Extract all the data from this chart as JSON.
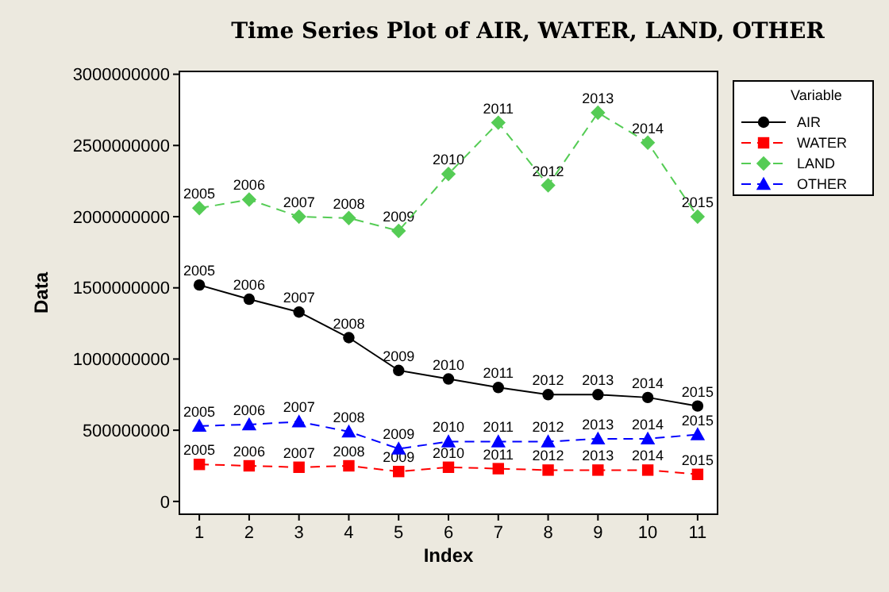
{
  "chart_data": {
    "type": "line",
    "title": "Time Series Plot of AIR, WATER, LAND, OTHER",
    "xlabel": "Index",
    "ylabel": "Data",
    "legend_title": "Variable",
    "legend": "right",
    "x": [
      1,
      2,
      3,
      4,
      5,
      6,
      7,
      8,
      9,
      10,
      11
    ],
    "xlim": [
      0.6,
      11.4
    ],
    "xticks": [
      1,
      2,
      3,
      4,
      5,
      6,
      7,
      8,
      9,
      10,
      11
    ],
    "ylim": [
      -90000000,
      3020000000
    ],
    "yticks": [
      0,
      500000000,
      1000000000,
      1500000000,
      2000000000,
      2500000000,
      3000000000
    ],
    "grid": false,
    "series": [
      {
        "name": "AIR",
        "color": "#000000",
        "marker": "circle",
        "line_style": "solid",
        "values": [
          1520000000,
          1420000000,
          1330000000,
          1150000000,
          920000000,
          860000000,
          800000000,
          750000000,
          750000000,
          730000000,
          670000000
        ]
      },
      {
        "name": "WATER",
        "color": "#ff0000",
        "marker": "square",
        "line_style": "dashed",
        "values": [
          260000000,
          250000000,
          240000000,
          250000000,
          210000000,
          240000000,
          230000000,
          220000000,
          220000000,
          220000000,
          190000000
        ]
      },
      {
        "name": "LAND",
        "color": "#55cc55",
        "marker": "diamond",
        "line_style": "dashed",
        "values": [
          2060000000,
          2120000000,
          2000000000,
          1990000000,
          1900000000,
          2300000000,
          2660000000,
          2220000000,
          2730000000,
          2520000000,
          2000000000
        ]
      },
      {
        "name": "OTHER",
        "color": "#0000ff",
        "marker": "triangle",
        "line_style": "dashed",
        "values": [
          530000000,
          540000000,
          560000000,
          490000000,
          370000000,
          420000000,
          420000000,
          420000000,
          440000000,
          440000000,
          470000000
        ]
      }
    ],
    "annotations": [
      {
        "text": "2005",
        "x": 1,
        "y": 1520000000
      },
      {
        "text": "2006",
        "x": 2,
        "y": 1420000000
      },
      {
        "text": "2007",
        "x": 3,
        "y": 1330000000
      },
      {
        "text": "2008",
        "x": 4,
        "y": 1150000000
      },
      {
        "text": "2009",
        "x": 5,
        "y": 920000000
      },
      {
        "text": "2010",
        "x": 6,
        "y": 860000000
      },
      {
        "text": "2011",
        "x": 7,
        "y": 800000000
      },
      {
        "text": "2012",
        "x": 8,
        "y": 750000000
      },
      {
        "text": "2013",
        "x": 9,
        "y": 750000000
      },
      {
        "text": "2014",
        "x": 10,
        "y": 730000000
      },
      {
        "text": "2015",
        "x": 11,
        "y": 670000000
      },
      {
        "text": "2005",
        "x": 1,
        "y": 260000000
      },
      {
        "text": "2006",
        "x": 2,
        "y": 250000000
      },
      {
        "text": "2007",
        "x": 3,
        "y": 240000000
      },
      {
        "text": "2008",
        "x": 4,
        "y": 250000000
      },
      {
        "text": "2009",
        "x": 5,
        "y": 210000000
      },
      {
        "text": "2010",
        "x": 6,
        "y": 240000000
      },
      {
        "text": "2011",
        "x": 7,
        "y": 230000000
      },
      {
        "text": "2012",
        "x": 8,
        "y": 220000000
      },
      {
        "text": "2013",
        "x": 9,
        "y": 220000000
      },
      {
        "text": "2014",
        "x": 10,
        "y": 220000000
      },
      {
        "text": "2015",
        "x": 11,
        "y": 190000000
      },
      {
        "text": "2005",
        "x": 1,
        "y": 2060000000
      },
      {
        "text": "2006",
        "x": 2,
        "y": 2120000000
      },
      {
        "text": "2007",
        "x": 3,
        "y": 2000000000
      },
      {
        "text": "2008",
        "x": 4,
        "y": 1990000000
      },
      {
        "text": "2009",
        "x": 5,
        "y": 1900000000
      },
      {
        "text": "2010",
        "x": 6,
        "y": 2300000000
      },
      {
        "text": "2011",
        "x": 7,
        "y": 2660000000
      },
      {
        "text": "2012",
        "x": 8,
        "y": 2220000000
      },
      {
        "text": "2013",
        "x": 9,
        "y": 2730000000
      },
      {
        "text": "2014",
        "x": 10,
        "y": 2520000000
      },
      {
        "text": "2015",
        "x": 11,
        "y": 2000000000
      },
      {
        "text": "2005",
        "x": 1,
        "y": 530000000
      },
      {
        "text": "2006",
        "x": 2,
        "y": 540000000
      },
      {
        "text": "2007",
        "x": 3,
        "y": 560000000
      },
      {
        "text": "2008",
        "x": 4,
        "y": 490000000
      },
      {
        "text": "2009",
        "x": 5,
        "y": 370000000
      },
      {
        "text": "2010",
        "x": 6,
        "y": 420000000
      },
      {
        "text": "2011",
        "x": 7,
        "y": 420000000
      },
      {
        "text": "2012",
        "x": 8,
        "y": 420000000
      },
      {
        "text": "2013",
        "x": 9,
        "y": 440000000
      },
      {
        "text": "2014",
        "x": 10,
        "y": 440000000
      },
      {
        "text": "2015",
        "x": 11,
        "y": 470000000
      }
    ]
  }
}
